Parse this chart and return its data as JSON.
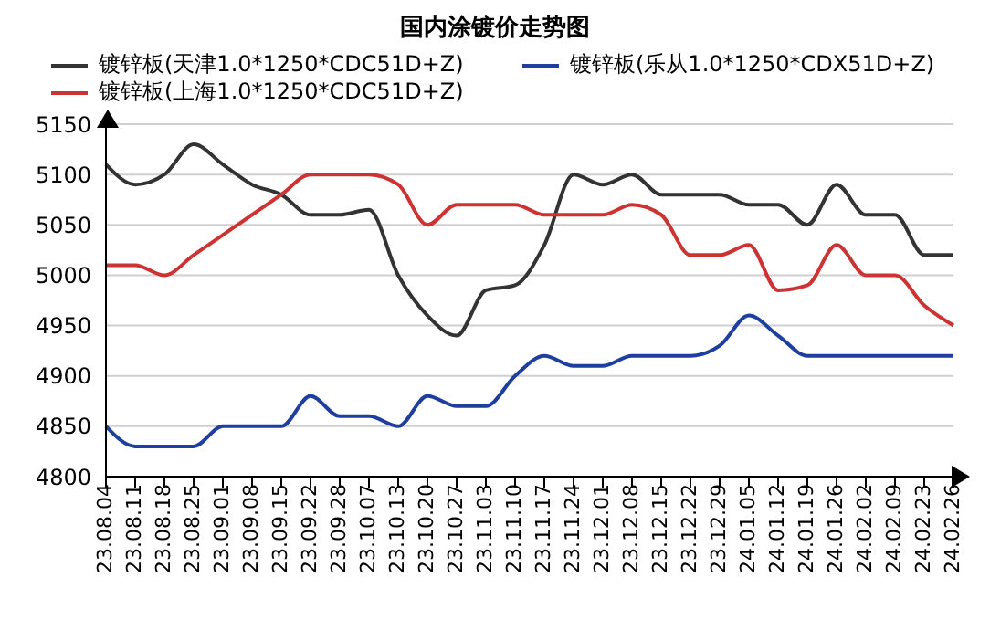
{
  "chart_data": {
    "type": "line",
    "title": "国内涂镀价走势图",
    "categories": [
      "23.08.04",
      "23.08.11",
      "23.08.18",
      "23.08.25",
      "23.09.01",
      "23.09.08",
      "23.09.15",
      "23.09.22",
      "23.09.28",
      "23.10.07",
      "23.10.13",
      "23.10.20",
      "23.10.27",
      "23.11.03",
      "23.11.10",
      "23.11.17",
      "23.11.24",
      "23.12.01",
      "23.12.08",
      "23.12.15",
      "23.12.22",
      "23.12.29",
      "24.01.05",
      "24.01.12",
      "24.01.19",
      "24.01.26",
      "24.02.02",
      "24.02.09",
      "24.02.23",
      "24.02.26"
    ],
    "series": [
      {
        "name": "镀锌板(天津1.0*1250*CDC51D+Z)",
        "color": "#333333",
        "values": [
          5110,
          5090,
          5100,
          5130,
          5110,
          5090,
          5080,
          5060,
          5060,
          5065,
          5000,
          4960,
          4940,
          4985,
          4990,
          5030,
          5100,
          5090,
          5100,
          5080,
          5080,
          5080,
          5070,
          5070,
          5050,
          5090,
          5060,
          5060,
          5020,
          5020
        ]
      },
      {
        "name": "镀锌板(乐从1.0*1250*CDX51D+Z)",
        "color": "#1f3f9f",
        "values": [
          4850,
          4830,
          4830,
          4830,
          4850,
          4850,
          4850,
          4880,
          4860,
          4860,
          4850,
          4880,
          4870,
          4870,
          4900,
          4920,
          4910,
          4910,
          4920,
          4920,
          4920,
          4930,
          4960,
          4940,
          4920,
          4920,
          4920,
          4920,
          4920,
          4920
        ]
      },
      {
        "name": "镀锌板(上海1.0*1250*CDC51D+Z)",
        "color": "#cc3333",
        "values": [
          5010,
          5010,
          5000,
          5020,
          5040,
          5060,
          5080,
          5100,
          5100,
          5100,
          5090,
          5050,
          5070,
          5070,
          5070,
          5060,
          5060,
          5060,
          5070,
          5060,
          5020,
          5020,
          5030,
          4985,
          4990,
          5030,
          5000,
          5000,
          4970,
          4950
        ]
      }
    ],
    "ylim": [
      4800,
      5150
    ],
    "yticks": [
      4800,
      4850,
      4900,
      4950,
      5000,
      5050,
      5100,
      5150
    ],
    "grid": "y",
    "legend": "top",
    "marker": "none",
    "line_style": "solid"
  }
}
